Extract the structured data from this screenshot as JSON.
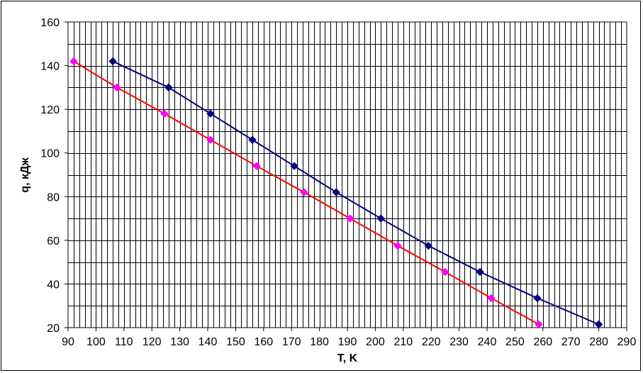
{
  "chart_data": {
    "type": "line",
    "title": "",
    "xlabel": "T, K",
    "ylabel": "q, кДж",
    "xlim": [
      90,
      290
    ],
    "ylim": [
      20,
      160
    ],
    "x_ticks": [
      90,
      100,
      110,
      120,
      130,
      140,
      150,
      160,
      170,
      180,
      190,
      200,
      210,
      220,
      230,
      240,
      250,
      260,
      270,
      280,
      290
    ],
    "y_ticks": [
      20,
      40,
      60,
      80,
      100,
      120,
      140,
      160
    ],
    "x_minor_step": 2,
    "y_minor_step": 10,
    "grid": true,
    "legend": "none",
    "series": [
      {
        "color": "#000080",
        "marker": "diamond",
        "points": [
          [
            106,
            142
          ],
          [
            126,
            130
          ],
          [
            141,
            118
          ],
          [
            156,
            106
          ],
          [
            171,
            94
          ],
          [
            186,
            82
          ],
          [
            202,
            70
          ],
          [
            219,
            57.5
          ],
          [
            237.5,
            45.5
          ],
          [
            258,
            33.5
          ],
          [
            280,
            21.5
          ]
        ]
      },
      {
        "color": "#ff0000",
        "marker_color": "#ff00ff",
        "marker": "diamond",
        "points": [
          [
            92,
            142
          ],
          [
            107.5,
            130
          ],
          [
            124.5,
            118
          ],
          [
            141,
            106
          ],
          [
            157.5,
            94
          ],
          [
            174.5,
            82
          ],
          [
            191,
            70
          ],
          [
            208,
            57.5
          ],
          [
            225,
            45.5
          ],
          [
            241.5,
            33.5
          ],
          [
            258.5,
            21.5
          ]
        ]
      }
    ]
  }
}
